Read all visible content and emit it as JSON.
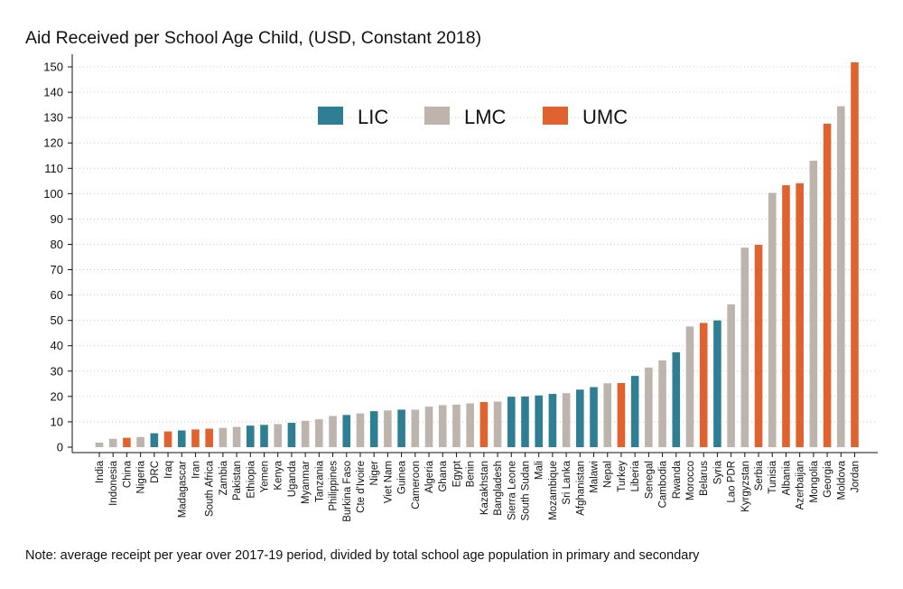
{
  "chart_data": {
    "type": "bar",
    "title": "Aid Received per School Age Child, (USD, Constant 2018)",
    "note": "Note: average receipt per year over 2017-19 period, divided by total school age population in primary and secondary",
    "xlabel": "",
    "ylabel": "",
    "ylim": [
      0,
      155
    ],
    "yticks": [
      0,
      10,
      20,
      30,
      40,
      50,
      60,
      70,
      80,
      90,
      100,
      110,
      120,
      130,
      140,
      150
    ],
    "grid": true,
    "legend_position": "top-center",
    "legend": [
      {
        "label": "LIC",
        "color": "#2e7f94"
      },
      {
        "label": "LMC",
        "color": "#bdb5ad"
      },
      {
        "label": "UMC",
        "color": "#e0632f"
      }
    ],
    "categories": [
      "India",
      "Indonesia",
      "China",
      "Nigeria",
      "DRC",
      "Iraq",
      "Madagascar",
      "Iran",
      "South Africa",
      "Zambia",
      "Pakistan",
      "Ethiopia",
      "Yemen",
      "Kenya",
      "Uganda",
      "Myanmar",
      "Tanzania",
      "Philippines",
      "Burkina Faso",
      "Cte d'Ivoire",
      "Niger",
      "Viet Nam",
      "Guinea",
      "Cameroon",
      "Algeria",
      "Ghana",
      "Egypt",
      "Benin",
      "Kazakhstan",
      "Bangladesh",
      "Sierra Leone",
      "South Sudan",
      "Mali",
      "Mozambique",
      "Sri Lanka",
      "Afghanistan",
      "Malawi",
      "Nepal",
      "Turkey",
      "Liberia",
      "Senegal",
      "Cambodia",
      "Rwanda",
      "Morocco",
      "Belarus",
      "Syria",
      "Lao PDR",
      "Kyrgyzstan",
      "Serbia",
      "Tunisia",
      "Albania",
      "Azerbaijan",
      "Mongolia",
      "Georgia",
      "Moldova",
      "Jordan"
    ],
    "values": [
      1.8,
      3.3,
      3.7,
      4.0,
      5.5,
      6.2,
      6.6,
      7.0,
      7.3,
      7.6,
      8.0,
      8.5,
      8.8,
      9.1,
      9.6,
      10.4,
      11.0,
      12.3,
      12.7,
      13.3,
      14.2,
      14.5,
      14.8,
      14.8,
      16.0,
      16.6,
      16.8,
      17.3,
      17.8,
      18.0,
      19.9,
      20.0,
      20.4,
      21.0,
      21.3,
      22.7,
      23.7,
      25.2,
      25.3,
      28.1,
      31.4,
      34.2,
      37.4,
      47.6,
      49.0,
      50.0,
      56.3,
      78.7,
      79.8,
      100.3,
      103.3,
      104.1,
      113.0,
      127.6,
      134.5,
      151.8
    ],
    "groups": [
      "LMC",
      "LMC",
      "UMC",
      "LMC",
      "LIC",
      "UMC",
      "LIC",
      "UMC",
      "UMC",
      "LMC",
      "LMC",
      "LIC",
      "LIC",
      "LMC",
      "LIC",
      "LMC",
      "LMC",
      "LMC",
      "LIC",
      "LMC",
      "LIC",
      "LMC",
      "LIC",
      "LMC",
      "LMC",
      "LMC",
      "LMC",
      "LMC",
      "UMC",
      "LMC",
      "LIC",
      "LIC",
      "LIC",
      "LIC",
      "LMC",
      "LIC",
      "LIC",
      "LMC",
      "UMC",
      "LIC",
      "LMC",
      "LMC",
      "LIC",
      "LMC",
      "UMC",
      "LIC",
      "LMC",
      "LMC",
      "UMC",
      "LMC",
      "UMC",
      "UMC",
      "LMC",
      "UMC",
      "LMC",
      "UMC"
    ]
  }
}
